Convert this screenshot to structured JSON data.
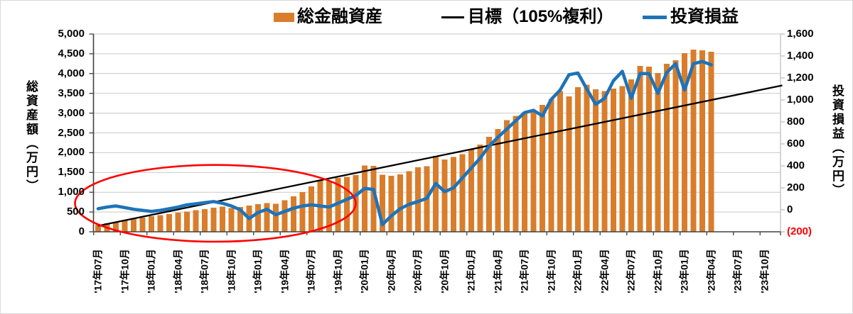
{
  "legend": {
    "assets_label": "総金融資産",
    "target_label": "目標（105%複利）",
    "profit_label": "投資損益"
  },
  "axes": {
    "left_title": "総資産額（万円）",
    "right_title": "投資損益（万円）",
    "left_ticks": [
      "5,000",
      "4,500",
      "4,000",
      "3,500",
      "3,000",
      "2,500",
      "2,000",
      "1,500",
      "1,000",
      "500",
      "0"
    ],
    "right_ticks": [
      "1,600",
      "1,400",
      "1,200",
      "1,000",
      "800",
      "600",
      "400",
      "200",
      "0",
      "(200)"
    ],
    "x_labels": [
      "'17年07月",
      "'17年10月",
      "'18年01月",
      "'18年04月",
      "'18年07月",
      "'18年10月",
      "'19年01月",
      "'19年04月",
      "'19年07月",
      "'19年10月",
      "'20年01月",
      "'20年04月",
      "'20年07月",
      "'20年10月",
      "'21年01月",
      "'21年04月",
      "'21年07月",
      "'21年10月",
      "'22年01月",
      "'22年04月",
      "'22年07月",
      "'22年10月",
      "'23年01月",
      "'23年04月",
      "'23年07月",
      "'23年10月"
    ]
  },
  "colors": {
    "bar": "#D97D2B",
    "target_line": "#000000",
    "profit_line": "#1E73B8",
    "gridline": "#C9C9C9",
    "axis_dark": "#404040",
    "axis_light": "#BFBFBF",
    "annotation": "#FF0000",
    "negative_tick": "#FF0000",
    "text": "#000000"
  },
  "chart_data": {
    "type": "bar",
    "note": "combo chart: monthly bars (left axis) + two lines (target on left axis, profit on right axis)",
    "x_monthly_start": "2017-07",
    "x_monthly_end": "2023-04",
    "left_axis": {
      "min": 0,
      "max": 5000,
      "step": 500
    },
    "right_axis": {
      "min": -200,
      "max": 1600,
      "step": 200
    },
    "series": [
      {
        "name": "総金融資産",
        "type": "bar",
        "axis": "left",
        "values": [
          180,
          215,
          250,
          285,
          320,
          355,
          390,
          420,
          450,
          480,
          515,
          545,
          575,
          610,
          640,
          600,
          630,
          660,
          700,
          730,
          705,
          800,
          900,
          1000,
          1150,
          1300,
          1280,
          1360,
          1390,
          1430,
          1680,
          1670,
          1440,
          1420,
          1450,
          1530,
          1630,
          1660,
          1920,
          1830,
          1890,
          1960,
          2100,
          2200,
          2400,
          2600,
          2820,
          2930,
          3020,
          3060,
          3210,
          3350,
          3560,
          3420,
          3660,
          3720,
          3600,
          3560,
          3620,
          3680,
          3855,
          4195,
          4180,
          4015,
          4245,
          4335,
          4515,
          4605,
          4590,
          4555
        ]
      },
      {
        "name": "目標（105%複利）",
        "type": "line",
        "axis": "left",
        "start_month_index": 0,
        "end_month_index": 77,
        "start_value": 150,
        "end_value": 3700
      },
      {
        "name": "投資損益",
        "type": "line",
        "axis": "right",
        "values": [
          10,
          25,
          35,
          20,
          5,
          -5,
          -15,
          -5,
          10,
          25,
          45,
          55,
          65,
          75,
          60,
          35,
          0,
          -80,
          -25,
          5,
          -45,
          -15,
          15,
          35,
          45,
          35,
          25,
          60,
          95,
          130,
          195,
          185,
          -135,
          -55,
          10,
          50,
          75,
          105,
          240,
          165,
          200,
          290,
          380,
          470,
          580,
          660,
          735,
          810,
          885,
          905,
          855,
          1005,
          1090,
          1230,
          1245,
          1100,
          960,
          1015,
          1175,
          1260,
          1015,
          1240,
          1240,
          1060,
          1250,
          1330,
          1090,
          1330,
          1350,
          1320
        ]
      }
    ],
    "annotation_ellipse": {
      "center_month": 13.2,
      "center_value_left": 720,
      "radius_months": 15.8,
      "radius_value_left": 970
    },
    "legend_position": "top",
    "grid": "horizontal-only"
  }
}
